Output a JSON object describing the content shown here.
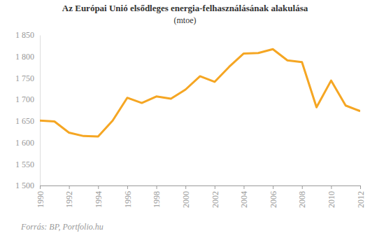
{
  "chart_data": {
    "type": "line",
    "title": "Az Európai Unió elsődleges energia-felhasználásának alakulása",
    "subtitle": "(mtoe)",
    "source": "Forrás: BP, Portfolio.hu",
    "x": [
      1990,
      1991,
      1992,
      1993,
      1994,
      1995,
      1996,
      1997,
      1998,
      1999,
      2000,
      2001,
      2002,
      2003,
      2004,
      2005,
      2006,
      2007,
      2008,
      2009,
      2010,
      2011,
      2012
    ],
    "values": [
      1651,
      1649,
      1623,
      1615,
      1614,
      1651,
      1704,
      1692,
      1707,
      1702,
      1723,
      1754,
      1741,
      1776,
      1807,
      1808,
      1817,
      1791,
      1787,
      1682,
      1744,
      1686,
      1673
    ],
    "color": "#f5a623",
    "xlim": [
      1990,
      2012
    ],
    "xticks": [
      1990,
      1992,
      1994,
      1996,
      1998,
      2000,
      2002,
      2004,
      2006,
      2008,
      2010,
      2012
    ],
    "ylim": [
      1500,
      1850
    ],
    "yticks": [
      {
        "value": 1500,
        "label": "1 500"
      },
      {
        "value": 1550,
        "label": "1 550"
      },
      {
        "value": 1600,
        "label": "1 600"
      },
      {
        "value": 1650,
        "label": "1 650"
      },
      {
        "value": 1700,
        "label": "1 700"
      },
      {
        "value": 1750,
        "label": "1 750"
      },
      {
        "value": 1800,
        "label": "1 800"
      },
      {
        "value": 1850,
        "label": "1 850"
      }
    ],
    "grid": false
  }
}
